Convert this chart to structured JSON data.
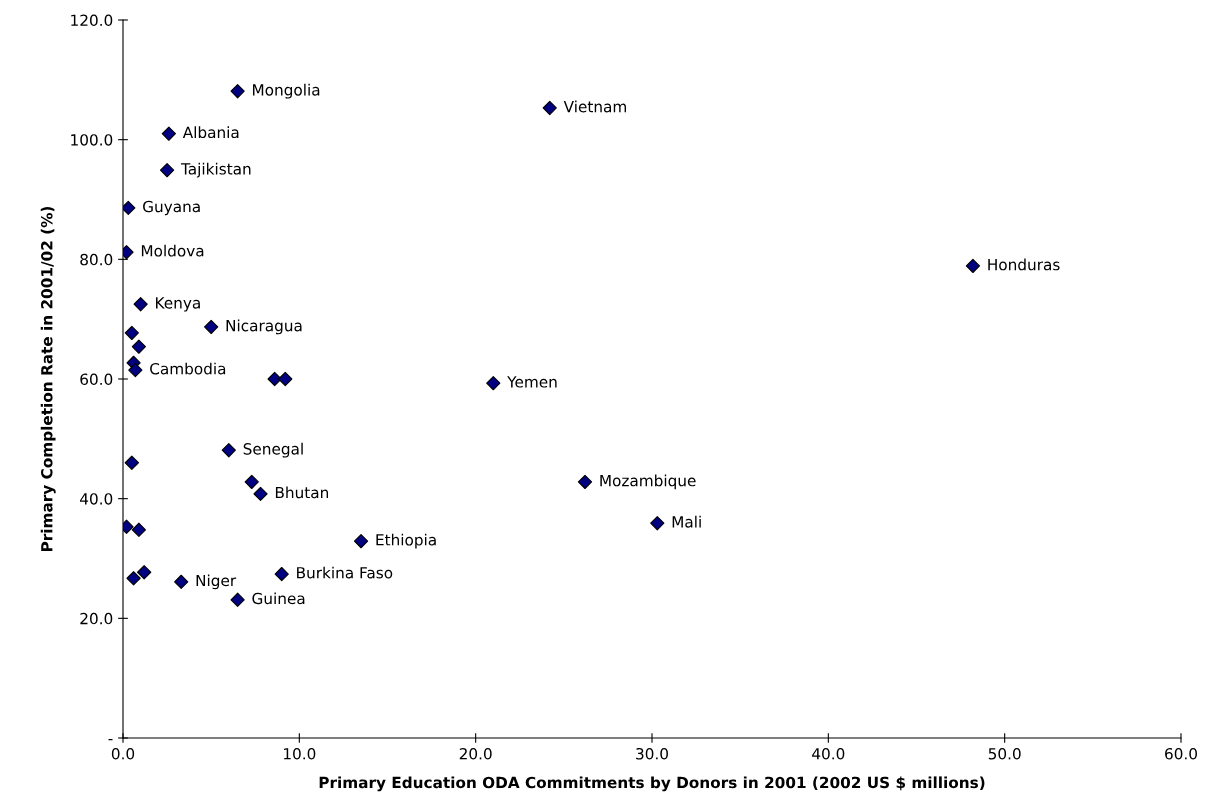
{
  "chart_data": {
    "type": "scatter",
    "xlabel": "Primary Education ODA Commitments by Donors in 2001 (2002 US $ millions)",
    "ylabel": "Primary Completion Rate in 2001/02 (%)",
    "marker": "diamond",
    "grid": false,
    "legend": false,
    "x": [
      6.5,
      24.2,
      2.6,
      2.5,
      0.3,
      0.2,
      48.2,
      1.0,
      5.0,
      0.5,
      0.9,
      0.6,
      0.7,
      8.6,
      9.2,
      21.0,
      6.0,
      0.5,
      7.3,
      7.8,
      26.2,
      30.3,
      0.2,
      0.9,
      13.5,
      9.0,
      0.6,
      1.2,
      3.3,
      6.5
    ],
    "series": [
      {
        "color": "#000080",
        "values": [
          108.1,
          105.3,
          101.0,
          94.9,
          88.6,
          81.2,
          78.9,
          72.5,
          68.7,
          67.7,
          65.4,
          62.7,
          61.5,
          60.0,
          60.0,
          59.3,
          48.1,
          46.0,
          42.8,
          40.8,
          42.8,
          35.9,
          35.3,
          34.8,
          32.9,
          27.4,
          26.7,
          27.7,
          26.1,
          23.1
        ]
      }
    ],
    "xlim": [
      0,
      60
    ],
    "xticks": [
      {
        "value": 0,
        "label": "0.0"
      },
      {
        "value": 10,
        "label": "10.0"
      },
      {
        "value": 20,
        "label": "20.0"
      },
      {
        "value": 30,
        "label": "30.0"
      },
      {
        "value": 40,
        "label": "40.0"
      },
      {
        "value": 50,
        "label": "50.0"
      },
      {
        "value": 60,
        "label": "60.0"
      }
    ],
    "ylim": [
      0,
      120
    ],
    "yticks": [
      {
        "value": 0,
        "label": "-"
      },
      {
        "value": 20,
        "label": "20.0"
      },
      {
        "value": 40,
        "label": "40.0"
      },
      {
        "value": 60,
        "label": "60.0"
      },
      {
        "value": 80,
        "label": "80.0"
      },
      {
        "value": 100,
        "label": "100.0"
      },
      {
        "value": 120,
        "label": "120.0"
      }
    ],
    "annotations": [
      {
        "text": "Mongolia",
        "x": 6.5,
        "y": 108.1
      },
      {
        "text": "Vietnam",
        "x": 24.2,
        "y": 105.3
      },
      {
        "text": "Albania",
        "x": 2.6,
        "y": 101.0
      },
      {
        "text": "Tajikistan",
        "x": 2.5,
        "y": 94.9
      },
      {
        "text": "Guyana",
        "x": 0.3,
        "y": 88.6
      },
      {
        "text": "Moldova",
        "x": 0.2,
        "y": 81.2
      },
      {
        "text": "Honduras",
        "x": 48.2,
        "y": 78.9
      },
      {
        "text": "Kenya",
        "x": 1.0,
        "y": 72.5
      },
      {
        "text": "Nicaragua",
        "x": 5.0,
        "y": 68.7
      },
      {
        "text": "Cambodia",
        "x": 0.7,
        "y": 61.5
      },
      {
        "text": "Yemen",
        "x": 21.0,
        "y": 59.3
      },
      {
        "text": "Senegal",
        "x": 6.0,
        "y": 48.1
      },
      {
        "text": "Bhutan",
        "x": 7.8,
        "y": 40.8
      },
      {
        "text": "Mozambique",
        "x": 26.2,
        "y": 42.8
      },
      {
        "text": "Mali",
        "x": 30.3,
        "y": 35.9
      },
      {
        "text": "Ethiopia",
        "x": 13.5,
        "y": 32.9
      },
      {
        "text": "Burkina Faso",
        "x": 9.0,
        "y": 27.4
      },
      {
        "text": "Niger",
        "x": 3.3,
        "y": 26.1
      },
      {
        "text": "Guinea",
        "x": 6.5,
        "y": 23.1
      }
    ]
  }
}
